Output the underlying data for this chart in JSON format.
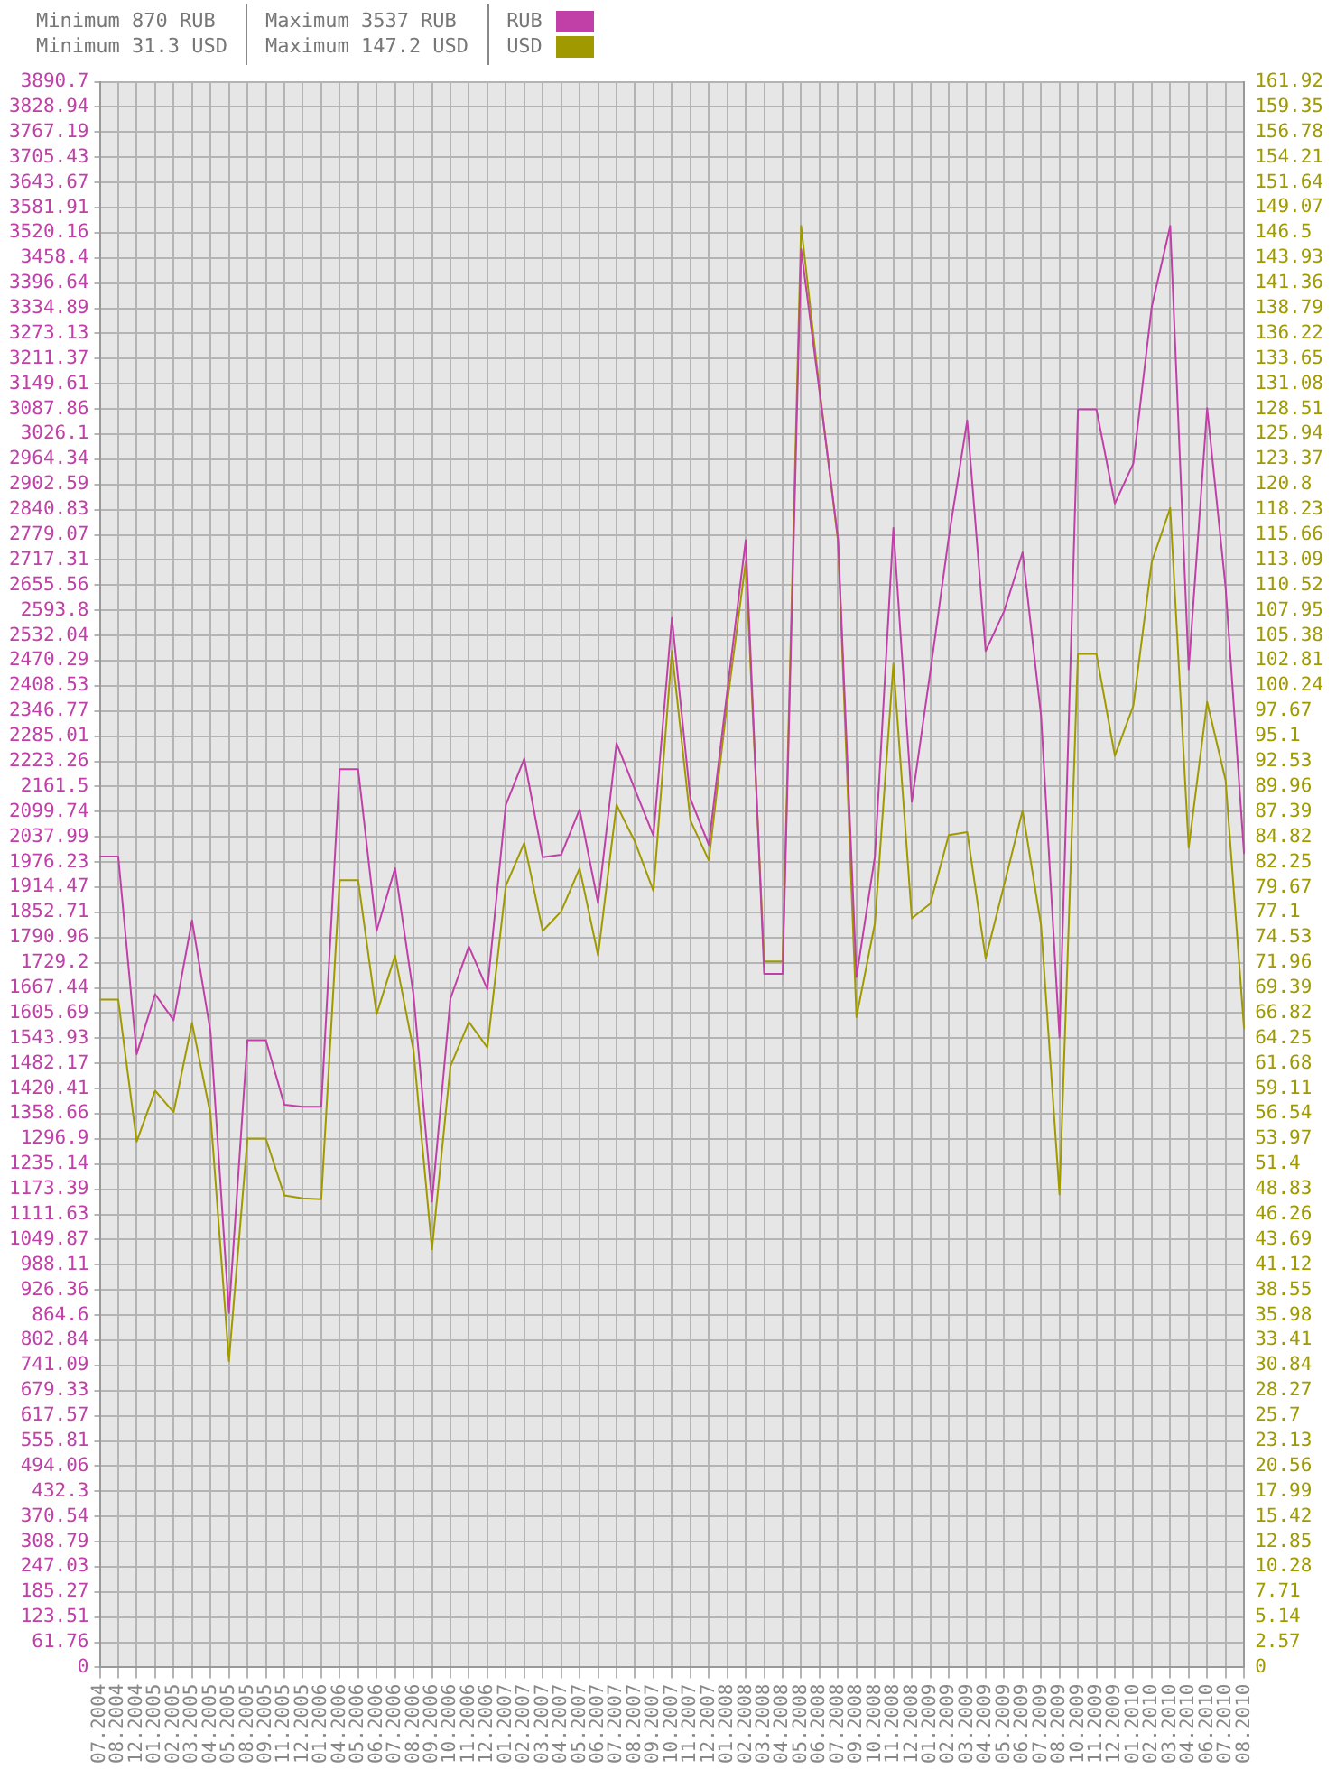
{
  "chart_data": {
    "type": "line",
    "annotations": [
      "Minimum 870 RUB",
      "Minimum 31.3 USD",
      "Maximum 3537 RUB",
      "Maximum 147.2 USD"
    ],
    "categories": [
      "07.2004",
      "08.2004",
      "12.2004",
      "01.2005",
      "02.2005",
      "03.2005",
      "04.2005",
      "05.2005",
      "08.2005",
      "09.2005",
      "11.2005",
      "12.2005",
      "01.2006",
      "04.2006",
      "05.2006",
      "06.2006",
      "07.2006",
      "08.2006",
      "09.2006",
      "10.2006",
      "11.2006",
      "12.2006",
      "01.2007",
      "02.2007",
      "03.2007",
      "04.2007",
      "05.2007",
      "06.2007",
      "07.2007",
      "08.2007",
      "09.2007",
      "10.2007",
      "11.2007",
      "12.2007",
      "01.2008",
      "02.2008",
      "03.2008",
      "04.2008",
      "05.2008",
      "06.2008",
      "07.2008",
      "09.2008",
      "10.2008",
      "11.2008",
      "12.2008",
      "01.2009",
      "02.2009",
      "03.2009",
      "04.2009",
      "05.2009",
      "06.2009",
      "07.2009",
      "08.2009",
      "10.2009",
      "11.2009",
      "12.2009",
      "01.2010",
      "02.2010",
      "03.2010",
      "04.2010",
      "06.2010",
      "07.2010",
      "08.2010"
    ],
    "series": [
      {
        "name": "RUB",
        "color": "#c040a8",
        "values": [
          1990,
          1990,
          1505,
          1652,
          1588,
          1833,
          1560,
          870,
          1539,
          1539,
          1381,
          1376,
          1376,
          2204,
          2204,
          1807,
          1961,
          1650,
          1143,
          1641,
          1769,
          1664,
          2116,
          2230,
          1988,
          1994,
          2105,
          1875,
          2268,
          2154,
          2041,
          2575,
          2132,
          2018,
          2396,
          2766,
          1702,
          1702,
          3480,
          3130,
          2770,
          1694,
          1990,
          2796,
          2124,
          2443,
          2773,
          3060,
          2494,
          2592,
          2736,
          2336,
          1545,
          3087,
          3087,
          2856,
          2954,
          3339,
          3537,
          2449,
          3090,
          2650,
          1996
        ]
      },
      {
        "name": "USD",
        "color": "#a09a00",
        "axis": "y2",
        "values": [
          68.2,
          68.2,
          53.7,
          58.9,
          56.7,
          65.8,
          56.5,
          31.3,
          54.0,
          54.0,
          48.2,
          47.9,
          47.8,
          80.4,
          80.4,
          66.7,
          72.7,
          63.0,
          42.7,
          61.4,
          65.9,
          63.3,
          79.8,
          84.2,
          75.2,
          77.2,
          81.6,
          72.7,
          88.1,
          84.3,
          79.3,
          103.8,
          86.5,
          82.4,
          98.5,
          112.9,
          72.1,
          72.1,
          147.2,
          130.5,
          115.0,
          66.4,
          76.0,
          102.5,
          76.5,
          78.0,
          85.0,
          85.3,
          72.4,
          79.9,
          87.5,
          75.8,
          48.3,
          103.5,
          103.5,
          93.1,
          98.2,
          112.9,
          118.4,
          83.7,
          98.6,
          90.6,
          65.2
        ]
      }
    ],
    "ylim": [
      0,
      3890.7
    ],
    "yticks": [
      0,
      61.76,
      123.51,
      185.27,
      247.03,
      308.79,
      370.54,
      432.3,
      494.06,
      555.81,
      617.57,
      679.33,
      741.09,
      802.84,
      864.6,
      926.36,
      988.11,
      1049.87,
      1111.63,
      1173.39,
      1235.14,
      1296.9,
      1358.66,
      1420.41,
      1482.17,
      1543.93,
      1605.69,
      1667.44,
      1729.2,
      1790.96,
      1852.71,
      1914.47,
      1976.23,
      2037.99,
      2099.74,
      2161.5,
      2223.26,
      2285.01,
      2346.77,
      2408.53,
      2470.29,
      2532.04,
      2593.8,
      2655.56,
      2717.31,
      2779.07,
      2840.83,
      2902.59,
      2964.34,
      3026.1,
      3087.86,
      3149.61,
      3211.37,
      3273.13,
      3334.89,
      3396.64,
      3458.4,
      3520.16,
      3581.91,
      3643.67,
      3705.43,
      3767.19,
      3828.94,
      3890.7
    ],
    "y2lim": [
      0,
      161.92
    ],
    "y2ticks": [
      0,
      2.57,
      5.14,
      7.71,
      10.28,
      12.85,
      15.42,
      17.99,
      20.56,
      23.13,
      25.7,
      28.27,
      30.84,
      33.41,
      35.98,
      38.55,
      41.12,
      43.69,
      46.26,
      48.83,
      51.4,
      53.97,
      56.54,
      59.11,
      61.68,
      64.25,
      66.82,
      69.39,
      71.96,
      74.53,
      77.1,
      79.67,
      82.25,
      84.82,
      87.39,
      89.96,
      92.53,
      95.1,
      97.67,
      100.24,
      102.81,
      105.38,
      107.95,
      110.52,
      113.09,
      115.66,
      118.23,
      120.8,
      123.37,
      125.94,
      128.51,
      131.08,
      133.65,
      136.22,
      138.79,
      141.36,
      143.93,
      146.5,
      149.07,
      151.64,
      154.21,
      156.78,
      159.35,
      161.92
    ],
    "grid": true,
    "legend": "top",
    "marker": "none",
    "line_style": "solid"
  }
}
